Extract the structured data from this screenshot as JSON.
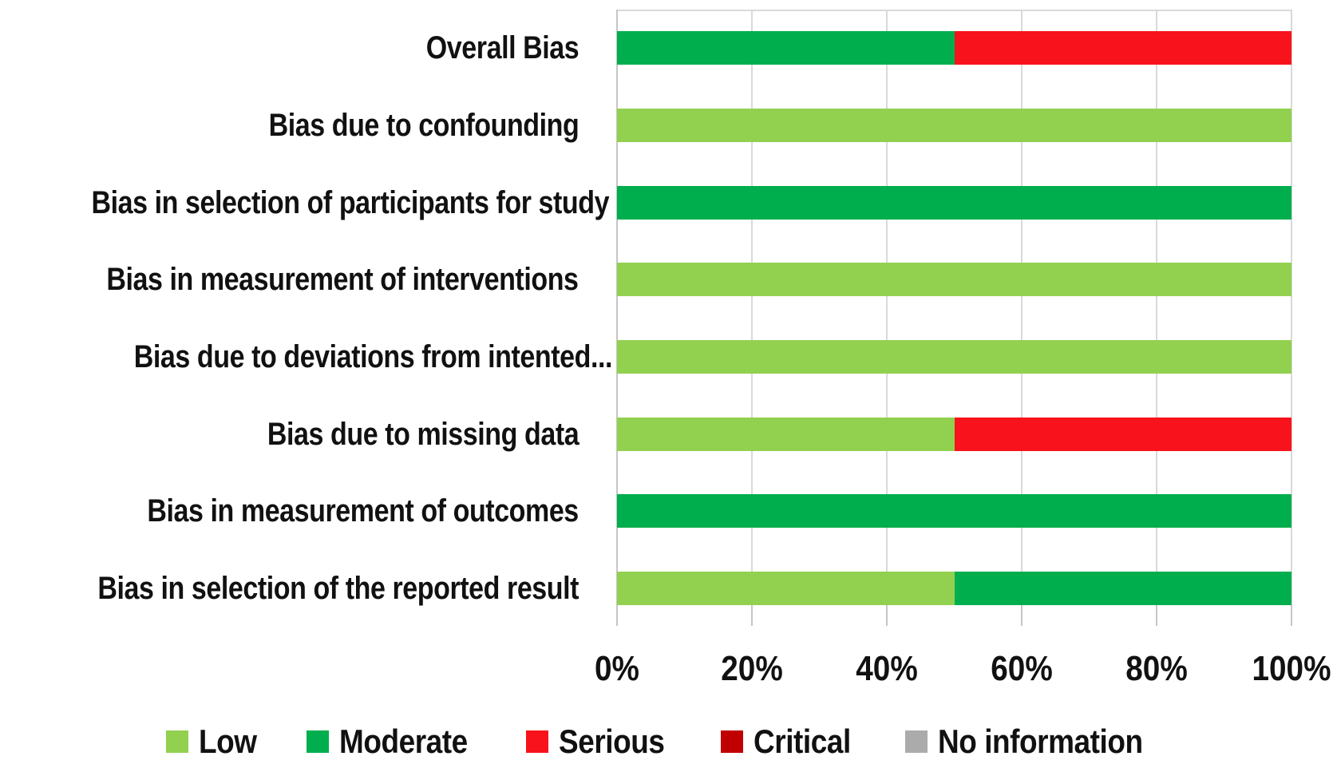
{
  "chart_data": {
    "type": "bar",
    "orientation": "horizontal",
    "stacked": true,
    "title": "",
    "xlabel": "",
    "ylabel": "",
    "unit": "percent",
    "grid": true,
    "legend_position": "bottom",
    "categories": [
      "Overall Bias",
      "Bias due to confounding",
      "Bias in selection of participants for study",
      "Bias in measurement of interventions",
      "Bias due to deviations from intented...",
      "Bias due to missing data",
      "Bias in measurement of outcomes",
      "Bias in selection of the reported result"
    ],
    "truncated_category_index": 4,
    "series": [
      {
        "name": "Low",
        "color": "#92D050",
        "values": [
          0,
          100,
          0,
          100,
          100,
          50,
          0,
          50
        ]
      },
      {
        "name": "Moderate",
        "color": "#00AE4D",
        "values": [
          50,
          0,
          100,
          0,
          0,
          0,
          100,
          50
        ]
      },
      {
        "name": "Serious",
        "color": "#F8121B",
        "values": [
          50,
          0,
          0,
          0,
          0,
          50,
          0,
          0
        ]
      },
      {
        "name": "Critical",
        "color": "#C00000",
        "values": [
          0,
          0,
          0,
          0,
          0,
          0,
          0,
          0
        ]
      },
      {
        "name": "No information",
        "color": "#ABABAB",
        "values": [
          0,
          0,
          0,
          0,
          0,
          0,
          0,
          0
        ]
      }
    ],
    "x_axis": {
      "range": [
        0,
        100
      ],
      "tick_labels": [
        "0%",
        "20%",
        "40%",
        "60%",
        "80%",
        "100%"
      ]
    },
    "legend": [
      "Low",
      "Moderate",
      "Serious",
      "Critical",
      "No information"
    ],
    "colors": {
      "gridline": "#d9d9d9",
      "axis": "#c6c6c6",
      "text": "#111111",
      "background": "#ffffff"
    }
  }
}
